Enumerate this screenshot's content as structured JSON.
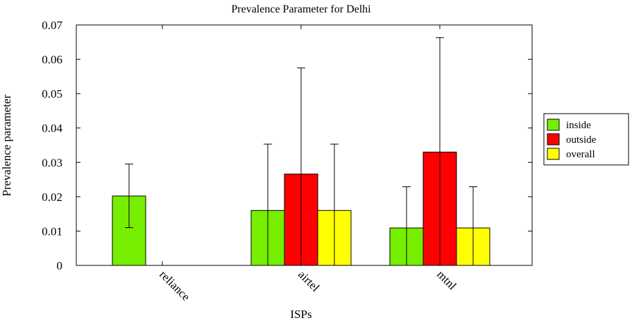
{
  "chart_data": {
    "type": "bar",
    "title": "Prevalence Parameter for Delhi",
    "xlabel": "ISPs",
    "ylabel": "Prevalence parameter",
    "ylim": [
      0,
      0.07
    ],
    "yticks": [
      "0",
      "0.01",
      "0.02",
      "0.03",
      "0.04",
      "0.05",
      "0.06",
      "0.07"
    ],
    "categories": [
      "reliance",
      "airtel",
      "mtnl"
    ],
    "legend_position": "right",
    "grid": false,
    "series": [
      {
        "name": "inside",
        "color": "#76ee00",
        "values": [
          0.0202,
          0.016,
          0.0109
        ],
        "error_high": [
          0.0295,
          0.0353,
          0.0229
        ],
        "error_low": [
          0.011,
          null,
          null
        ]
      },
      {
        "name": "outside",
        "color": "#ff0000",
        "values": [
          null,
          0.0266,
          0.033
        ],
        "error_high": [
          null,
          0.0575,
          0.0663
        ],
        "error_low": [
          null,
          null,
          null
        ]
      },
      {
        "name": "overall",
        "color": "#ffff00",
        "values": [
          null,
          0.016,
          0.0109
        ],
        "error_high": [
          null,
          0.0353,
          0.0229
        ],
        "error_low": [
          null,
          null,
          null
        ]
      }
    ]
  }
}
